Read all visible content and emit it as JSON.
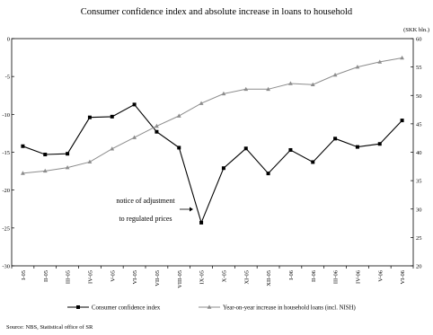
{
  "chart_data": {
    "type": "line",
    "title": "Consumer confidence index and absolute increase in loans to household",
    "right_unit": "(SKK bln.)",
    "categories": [
      "I-05",
      "II-05",
      "III-05",
      "IV-05",
      "V-05",
      "VI-05",
      "VII-05",
      "VIII-05",
      "IX-05",
      "X-05",
      "XI-05",
      "XII-05",
      "I-06",
      "II-06",
      "III-06",
      "IV-06",
      "V-06",
      "VI-06"
    ],
    "left_axis": {
      "ylim": [
        -30,
        0
      ],
      "ticks": [
        "0",
        "-5",
        "-10",
        "-15",
        "-20",
        "-25",
        "-30"
      ]
    },
    "right_axis": {
      "ylim": [
        20,
        60
      ],
      "ticks": [
        "60",
        "55",
        "50",
        "45",
        "40",
        "35",
        "30",
        "25",
        "20"
      ]
    },
    "grid": false,
    "legend_placement": "bottom",
    "series": [
      {
        "name": "Consumer confidence index",
        "axis": "left",
        "color": "#000000",
        "marker": "square",
        "values": [
          -14.2,
          -15.3,
          -15.2,
          -10.4,
          -10.3,
          -8.7,
          -12.3,
          -14.4,
          -24.3,
          -17.1,
          -14.5,
          -17.8,
          -14.7,
          -16.3,
          -13.2,
          -14.3,
          -13.9,
          -10.8
        ]
      },
      {
        "name": "Year-on-year increase in household loans (incl. NISH)",
        "axis": "right",
        "color": "#8c8c8c",
        "marker": "triangle",
        "values": [
          36.3,
          36.7,
          37.3,
          38.3,
          40.6,
          42.6,
          44.6,
          46.4,
          48.6,
          50.3,
          51.1,
          51.1,
          52.1,
          51.9,
          53.6,
          55.0,
          55.9,
          56.6
        ]
      }
    ],
    "annotation": {
      "lines": [
        "notice of adjustment",
        "to regulated prices"
      ]
    }
  },
  "source": "Source: NBS, Statistical office of SR"
}
